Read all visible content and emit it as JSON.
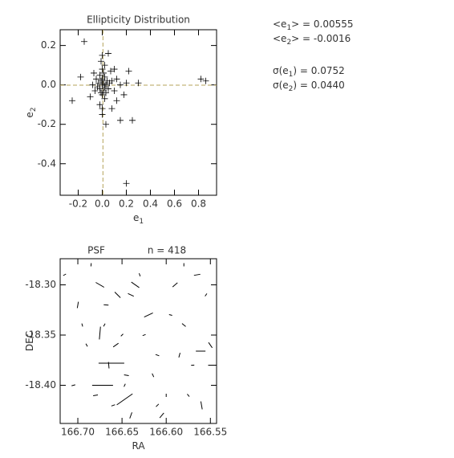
{
  "chart_data": [
    {
      "type": "scatter",
      "title": "Ellipticity Distribution",
      "x_label": {
        "text": "e",
        "sub": "1"
      },
      "y_label": {
        "text": "e",
        "sub": "2"
      },
      "xlim": [
        -0.35,
        0.95
      ],
      "ylim": [
        -0.56,
        0.28
      ],
      "xticks": [
        -0.2,
        {
          "value": 0,
          "label": "0.0"
        },
        0.2,
        0.4,
        0.6,
        0.8
      ],
      "yticks": [
        0.2,
        {
          "value": 0,
          "label": "0.0"
        },
        -0.2,
        -0.4
      ],
      "color": "#000000",
      "ref_color": "#b5a35a",
      "stats": [
        {
          "text": "<e",
          "sub": "1",
          "rest": "> = ",
          "value": 0.00555,
          "label": "0.00555"
        },
        {
          "text": "<e",
          "sub": "2",
          "rest": "> = ",
          "value": -0.0016,
          "label": "-0.0016"
        },
        {
          "text": "σ(e",
          "sub": "1",
          "rest": ") = ",
          "value": 0.0752,
          "label": "0.0752"
        },
        {
          "text": "σ(e",
          "sub": "2",
          "rest": ") = ",
          "value": 0.044,
          "label": "0.0440"
        }
      ],
      "x": [
        0,
        0.01,
        -0.01,
        0.02,
        -0.02,
        0.03,
        -0.03,
        0,
        0.01,
        -0.01,
        0.04,
        -0.04,
        0.02,
        0.05,
        -0.05,
        0,
        0.03,
        -0.02,
        0.06,
        -0.06,
        0.01,
        0.08,
        -0.08,
        0.02,
        0,
        0.1,
        0.12,
        0.15,
        0.2,
        0.3,
        0.82,
        0.86,
        -0.15,
        -0.18,
        -0.25,
        0.05,
        0,
        -0.01,
        0.02,
        0,
        0,
        -0.02,
        0.03,
        0.15,
        0.25,
        0.2,
        0.08,
        -0.1,
        0.12,
        0.07,
        -0.07,
        0.1,
        0.22,
        0.18
      ],
      "y": [
        0,
        0.01,
        0.02,
        -0.01,
        -0.02,
        0,
        0.01,
        0.03,
        -0.03,
        -0.04,
        0.02,
        -0.01,
        0.04,
        -0.02,
        0.03,
        -0.05,
        -0.04,
        0.05,
        0.01,
        -0.03,
        0.06,
        0.02,
        0,
        -0.07,
        0.08,
        -0.03,
        0.03,
        0,
        0.01,
        0.01,
        0.03,
        0.02,
        0.22,
        0.04,
        -0.08,
        0.16,
        0.15,
        0.12,
        0.1,
        -0.12,
        -0.15,
        -0.1,
        -0.2,
        -0.18,
        -0.18,
        -0.5,
        -0.12,
        -0.06,
        -0.08,
        0.07,
        0.06,
        0.08,
        0.07,
        -0.05
      ]
    },
    {
      "type": "whisker",
      "title": "PSF",
      "annotation": "n = 418",
      "x_label": {
        "text": "RA",
        "sub": ""
      },
      "y_label": {
        "text": "DEC",
        "sub": ""
      },
      "xlim": [
        166.72,
        166.543
      ],
      "ylim": [
        -18.438,
        -18.274
      ],
      "xticks": [
        {
          "value": 166.7,
          "label": "166.70"
        },
        166.65,
        {
          "value": 166.6,
          "label": "166.60"
        },
        166.55
      ],
      "yticks": [
        {
          "value": -18.3,
          "label": "-18.30"
        },
        -18.35,
        {
          "value": -18.4,
          "label": "-18.40"
        }
      ],
      "color": "#000000",
      "ra": [
        166.715,
        166.7,
        166.69,
        166.68,
        166.675,
        166.67,
        166.665,
        166.66,
        166.655,
        166.65,
        166.645,
        166.64,
        166.63,
        166.62,
        166.61,
        166.6,
        166.59,
        166.58,
        166.57,
        166.56,
        166.555,
        166.55,
        166.705,
        166.685,
        166.668,
        166.657,
        166.647,
        166.635,
        166.625,
        166.615,
        166.605,
        166.595,
        166.585,
        166.575,
        166.565,
        166.548,
        166.695,
        166.64,
        166.61,
        166.58,
        166.662,
        166.672,
        166.647,
        166.561,
        166.675
      ],
      "dec": [
        -18.29,
        -18.32,
        -18.36,
        -18.41,
        -18.3,
        -18.34,
        -18.38,
        -18.42,
        -18.31,
        -18.35,
        -18.39,
        -18.43,
        -18.29,
        -18.33,
        -18.37,
        -18.41,
        -18.3,
        -18.34,
        -18.38,
        -18.42,
        -18.31,
        -18.36,
        -18.4,
        -18.28,
        -18.32,
        -18.36,
        -18.4,
        -18.3,
        -18.35,
        -18.39,
        -18.43,
        -18.33,
        -18.37,
        -18.41,
        -18.29,
        -18.38,
        -18.34,
        -18.31,
        -18.42,
        -18.28,
        -18.378,
        -18.4,
        -18.414,
        -18.366,
        -18.348
      ],
      "e": [
        0.01,
        0.02,
        0.01,
        0.015,
        0.03,
        0.01,
        0.02,
        0.012,
        0.025,
        0.01,
        0.015,
        0.02,
        0.01,
        0.03,
        0.012,
        0.01,
        0.02,
        0.015,
        0.01,
        0.025,
        0.01,
        0.02,
        0.012,
        0.01,
        0.015,
        0.02,
        0.01,
        0.03,
        0.01,
        0.012,
        0.02,
        0.01,
        0.015,
        0.01,
        0.02,
        0.025,
        0.01,
        0.02,
        0.012,
        0.01,
        0.08,
        0.065,
        0.06,
        0.03,
        0.04
      ],
      "angle": [
        30,
        80,
        120,
        10,
        150,
        60,
        95,
        20,
        135,
        45,
        170,
        70,
        110,
        25,
        160,
        90,
        40,
        140,
        5,
        100,
        55,
        125,
        15,
        85,
        175,
        35,
        65,
        145,
        20,
        115,
        50,
        165,
        75,
        130,
        10,
        0,
        105,
        155,
        45,
        90,
        0,
        0,
        35,
        0,
        85
      ]
    }
  ]
}
